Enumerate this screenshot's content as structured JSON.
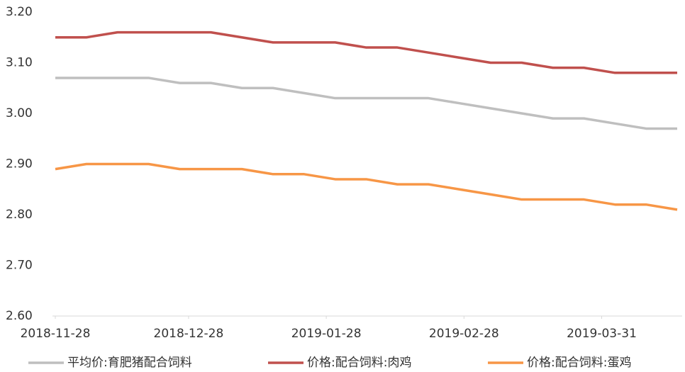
{
  "chart_data": {
    "type": "line",
    "x": [
      "2018-11-28",
      "2018-12-05",
      "2018-12-12",
      "2018-12-19",
      "2018-12-26",
      "2019-01-02",
      "2019-01-09",
      "2019-01-16",
      "2019-01-23",
      "2019-01-30",
      "2019-02-06",
      "2019-02-13",
      "2019-02-20",
      "2019-02-27",
      "2019-03-06",
      "2019-03-13",
      "2019-03-20",
      "2019-03-27",
      "2019-04-03",
      "2019-04-10",
      "2019-04-17"
    ],
    "series": [
      {
        "name": "平均价:育肥猪配合饲料",
        "color": "#bfbfbf",
        "values": [
          3.07,
          3.07,
          3.07,
          3.07,
          3.06,
          3.06,
          3.05,
          3.05,
          3.04,
          3.03,
          3.03,
          3.03,
          3.03,
          3.02,
          3.01,
          3.0,
          2.99,
          2.99,
          2.98,
          2.97,
          2.97
        ]
      },
      {
        "name": "价格:配合饲料:肉鸡",
        "color": "#c0504d",
        "values": [
          3.15,
          3.15,
          3.16,
          3.16,
          3.16,
          3.16,
          3.15,
          3.14,
          3.14,
          3.14,
          3.13,
          3.13,
          3.12,
          3.11,
          3.1,
          3.1,
          3.09,
          3.09,
          3.08,
          3.08,
          3.08
        ]
      },
      {
        "name": "价格:配合饲料:蛋鸡",
        "color": "#f79646",
        "values": [
          2.89,
          2.9,
          2.9,
          2.9,
          2.89,
          2.89,
          2.89,
          2.88,
          2.88,
          2.87,
          2.87,
          2.86,
          2.86,
          2.85,
          2.84,
          2.83,
          2.83,
          2.83,
          2.82,
          2.82,
          2.81
        ]
      }
    ],
    "xlim": [
      "2018-11-28",
      "2019-04-17"
    ],
    "xticks": [
      "2018-11-28",
      "2018-12-28",
      "2019-01-28",
      "2019-02-28",
      "2019-03-31"
    ],
    "ylim": [
      2.6,
      3.2
    ],
    "yticks": [
      {
        "value": 2.6,
        "label": "2.60"
      },
      {
        "value": 2.7,
        "label": "2.70"
      },
      {
        "value": 2.8,
        "label": "2.80"
      },
      {
        "value": 2.9,
        "label": "2.90"
      },
      {
        "value": 3.0,
        "label": "3.00"
      },
      {
        "value": 3.1,
        "label": "3.10"
      },
      {
        "value": 3.2,
        "label": "3.20"
      }
    ],
    "legend": "bottom"
  }
}
